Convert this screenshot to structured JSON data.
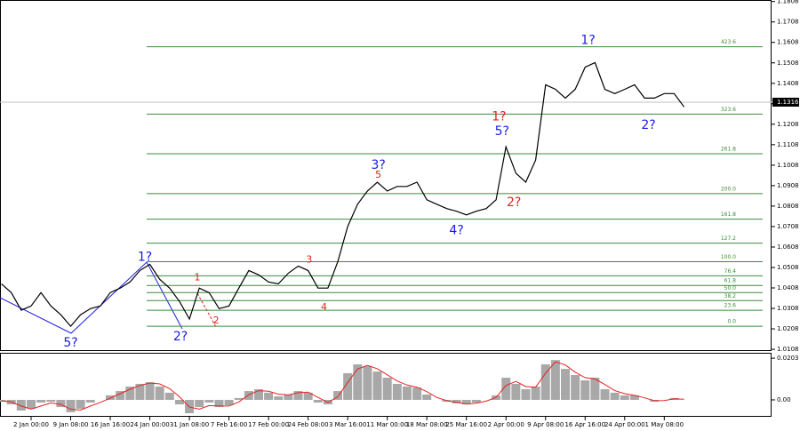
{
  "chart_data": [
    {
      "type": "line",
      "categories": [
        null,
        null,
        null,
        "2 Jan 00:00",
        null,
        null,
        null,
        "9 Jan 08:00",
        null,
        null,
        null,
        "16 Jan 16:00",
        null,
        null,
        null,
        "24 Jan 00:00",
        null,
        null,
        null,
        "31 Jan 08:00",
        null,
        null,
        null,
        "7 Feb 16:00",
        null,
        null,
        null,
        "17 Feb 00:00",
        null,
        null,
        null,
        "24 Feb 08:00",
        null,
        null,
        null,
        "3 Mar 16:00",
        null,
        null,
        null,
        "11 Mar 00:00",
        null,
        null,
        null,
        "18 Mar 08:00",
        null,
        null,
        null,
        "25 Mar 16:00",
        null,
        null,
        null,
        "2 Apr 00:00",
        null,
        null,
        null,
        "9 Apr 08:00",
        null,
        null,
        null,
        "16 Apr 16:00",
        null,
        null,
        null,
        "24 Apr 00:00",
        null,
        null,
        null,
        "1 May 08:00",
        null,
        null
      ],
      "values": [
        1.0428,
        1.0385,
        1.0299,
        1.032,
        1.0385,
        1.032,
        1.0277,
        1.0221,
        1.0277,
        1.0307,
        1.032,
        1.0385,
        1.0407,
        1.0437,
        1.0493,
        1.0523,
        1.045,
        1.0407,
        1.0342,
        1.0256,
        1.0407,
        1.0385,
        1.0307,
        1.032,
        1.0407,
        1.0493,
        1.0472,
        1.0437,
        1.0428,
        1.048,
        1.0515,
        1.0493,
        1.0407,
        1.0407,
        1.0536,
        1.0709,
        1.0817,
        1.0882,
        1.0925,
        1.0882,
        1.0904,
        1.0904,
        1.0925,
        1.0839,
        1.0817,
        1.0796,
        1.0783,
        1.0765,
        1.0783,
        1.0796,
        1.0839,
        1.1098,
        1.0969,
        1.0925,
        1.1033,
        1.1401,
        1.1379,
        1.1336,
        1.1379,
        1.1487,
        1.1509,
        1.1379,
        1.1358,
        1.1379,
        1.1401,
        1.1336,
        1.1336,
        1.1358,
        1.1358,
        1.1293
      ],
      "color": "#000000",
      "ylim": [
        1.0104,
        1.1811
      ],
      "yticks": [
        1.0108,
        1.0208,
        1.0308,
        1.0408,
        1.0508,
        1.0608,
        1.0708,
        1.0808,
        1.0908,
        1.1008,
        1.1108,
        1.1208,
        1.1308,
        1.1408,
        1.1508,
        1.1608,
        1.1708,
        1.1808
      ],
      "current_price": 1.1316,
      "fib_levels": [
        {
          "value": 1.0221,
          "label": "0.0"
        },
        {
          "value": 1.0299,
          "label": "23.6"
        },
        {
          "value": 1.0346,
          "label": "38.2"
        },
        {
          "value": 1.0385,
          "label": "50.0"
        },
        {
          "value": 1.042,
          "label": "61.8"
        },
        {
          "value": 1.0467,
          "label": "76.4"
        },
        {
          "value": 1.0536,
          "label": "100.0"
        },
        {
          "value": 1.0627,
          "label": "127.2"
        },
        {
          "value": 1.0744,
          "label": "161.8"
        },
        {
          "value": 1.0869,
          "label": "200.0"
        },
        {
          "value": 1.1064,
          "label": "261.8"
        },
        {
          "value": 1.1258,
          "label": "323.6"
        },
        {
          "value": 1.1587,
          "label": "423.6"
        }
      ],
      "fib_color": "#3c8c3c",
      "annotations": [
        {
          "text": "5?",
          "x": 7,
          "y": 1.0139,
          "color": "#1a1ae6"
        },
        {
          "text": "1?",
          "x": 14.5,
          "y": 1.0558,
          "color": "#1a1ae6"
        },
        {
          "text": "2?",
          "x": 18.1,
          "y": 1.0169,
          "color": "#1a1ae6"
        },
        {
          "text": "1",
          "x": 19.8,
          "y": 1.0459,
          "color": "#e62020"
        },
        {
          "text": "2",
          "x": 21.7,
          "y": 1.0247,
          "color": "#e62020"
        },
        {
          "text": "3",
          "x": 31.1,
          "y": 1.0545,
          "color": "#e62020"
        },
        {
          "text": "4",
          "x": 32.6,
          "y": 1.0312,
          "color": "#e62020"
        },
        {
          "text": "3?",
          "x": 38.1,
          "y": 1.1007,
          "color": "#1a1ae6"
        },
        {
          "text": "5",
          "x": 38.1,
          "y": 1.096,
          "color": "#e62020"
        },
        {
          "text": "4?",
          "x": 46.0,
          "y": 1.0688,
          "color": "#1a1ae6"
        },
        {
          "text": "1?",
          "x": 50.3,
          "y": 1.1245,
          "color": "#e62020"
        },
        {
          "text": "5?",
          "x": 50.6,
          "y": 1.1172,
          "color": "#1a1ae6"
        },
        {
          "text": "2?",
          "x": 51.8,
          "y": 1.0826,
          "color": "#e62020"
        },
        {
          "text": "1?",
          "x": 59.3,
          "y": 1.1617,
          "color": "#1a1ae6"
        },
        {
          "text": "2?",
          "x": 65.4,
          "y": 1.1202,
          "color": "#1a1ae6"
        }
      ]
    },
    {
      "type": "bar",
      "values": [
        -0.0009,
        -0.0022,
        -0.0052,
        -0.0043,
        -0.0013,
        -0.0009,
        -0.0035,
        -0.006,
        -0.0043,
        -0.0013,
        0,
        0.0022,
        0.0043,
        0.0065,
        0.0078,
        0.0086,
        0.0065,
        0.0035,
        -0.0022,
        -0.0065,
        -0.0035,
        -0.0013,
        -0.0035,
        -0.0026,
        0.0009,
        0.0043,
        0.0052,
        0.0035,
        0.0017,
        0.0026,
        0.0043,
        0.0035,
        -0.0013,
        -0.0022,
        0.0043,
        0.013,
        0.0173,
        0.0164,
        0.0138,
        0.0108,
        0.0078,
        0.0065,
        0.006,
        0.0026,
        0,
        -0.0009,
        -0.0017,
        -0.0022,
        -0.0013,
        0,
        0.0022,
        0.0108,
        0.0078,
        0.0052,
        0.0065,
        0.0173,
        0.0194,
        0.0151,
        0.0121,
        0.0095,
        0.0108,
        0.0052,
        0.0035,
        0.0022,
        0.0022,
        0,
        -0.0009,
        0,
        0.0009,
        0
      ],
      "color": "#a8a8a8",
      "signal": {
        "color": "#e62020",
        "values": [
          -0.0005,
          -0.001,
          -0.003,
          -0.0045,
          -0.003,
          -0.0015,
          -0.0022,
          -0.0045,
          -0.005,
          -0.003,
          -0.0012,
          0.0008,
          0.003,
          0.0052,
          0.007,
          0.0082,
          0.0078,
          0.0055,
          0.0015,
          -0.0035,
          -0.0045,
          -0.0028,
          -0.003,
          -0.003,
          -0.001,
          0.0025,
          0.0045,
          0.0042,
          0.0028,
          0.0024,
          0.0035,
          0.0038,
          0.0012,
          -0.0012,
          0.0015,
          0.0085,
          0.015,
          0.0168,
          0.0152,
          0.0122,
          0.0092,
          0.0072,
          0.0062,
          0.004,
          0.0012,
          -0.0004,
          -0.0012,
          -0.002,
          -0.0016,
          -0.0006,
          0.0012,
          0.007,
          0.009,
          0.0065,
          0.0062,
          0.013,
          0.0185,
          0.017,
          0.0135,
          0.0108,
          0.0102,
          0.0075,
          0.0045,
          0.003,
          0.0022,
          0.001,
          -0.0004,
          -0.0003,
          0.0005,
          0.0003
        ]
      },
      "ylim": [
        -0.0078,
        0.0225
      ],
      "yticks": [
        {
          "value": 0.0203,
          "label": "0.0203"
        },
        {
          "value": 0,
          "label": "0.00"
        }
      ]
    }
  ]
}
